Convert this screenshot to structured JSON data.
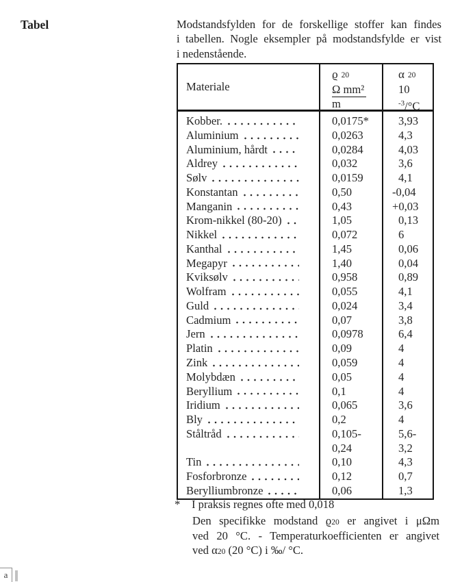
{
  "margin_label": "Tabel",
  "intro": {
    "lines": [
      "Modstandsfylden for de forskellige stoffer kan findes",
      "i tabellen. Nogle eksempler på modstandsfylde er vist",
      "i nedenstående."
    ]
  },
  "table": {
    "header": {
      "material": "Materiale",
      "rho_symbol": "ϱ",
      "rho_sub": "20",
      "rho_num": "Ω mm²",
      "rho_den": "m",
      "alpha_symbol": "α",
      "alpha_sub": "20",
      "alpha_base": "10",
      "alpha_exp": "-3",
      "alpha_unit": "/°C"
    },
    "rows": [
      {
        "name": "Kobber.",
        "rho": "0,0175*",
        "alpha": "3,93"
      },
      {
        "name": "Aluminium",
        "rho": "0,0263",
        "alpha": "4,3"
      },
      {
        "name": "Aluminium, hårdt",
        "rho": "0,0284",
        "alpha": "4,03"
      },
      {
        "name": "Aldrey",
        "rho": "0,032",
        "alpha": "3,6"
      },
      {
        "name": "Sølv",
        "rho": "0,0159",
        "alpha": "4,1"
      },
      {
        "name": "Konstantan",
        "rho": "0,50",
        "alpha": "-0,04"
      },
      {
        "name": "Manganin",
        "rho": "0,43",
        "alpha": "+0,03"
      },
      {
        "name": "Krom-nikkel (80-20)",
        "rho": "1,05",
        "alpha": "0,13"
      },
      {
        "name": "Nikkel",
        "rho": "0,072",
        "alpha": "6"
      },
      {
        "name": "Kanthal",
        "rho": "1,45",
        "alpha": "0,06"
      },
      {
        "name": "Megapyr",
        "rho": "1,40",
        "alpha": "0,04"
      },
      {
        "name": "Kviksølv",
        "rho": "0,958",
        "alpha": "0,89"
      },
      {
        "name": "Wolfram",
        "rho": "0,055",
        "alpha": "4,1"
      },
      {
        "name": "Guld",
        "rho": "0,024",
        "alpha": "3,4"
      },
      {
        "name": "Cadmium",
        "rho": "0,07",
        "alpha": "3,8"
      },
      {
        "name": "Jern",
        "rho": "0,0978",
        "alpha": "6,4"
      },
      {
        "name": "Platin",
        "rho": "0,09",
        "alpha": "4"
      },
      {
        "name": "Zink",
        "rho": "0,059",
        "alpha": "4"
      },
      {
        "name": "Molybdæn",
        "rho": "0,05",
        "alpha": "4"
      },
      {
        "name": "Beryllium",
        "rho": "0,1",
        "alpha": "4"
      },
      {
        "name": "Iridium",
        "rho": "0,065",
        "alpha": "3,6"
      },
      {
        "name": "Bly",
        "rho": "0,2",
        "alpha": "4"
      },
      {
        "name": "Ståltråd",
        "rho": [
          "0,105-",
          "0,24"
        ],
        "alpha": [
          "5,6-",
          "3,2"
        ]
      },
      {
        "name": "Tin",
        "rho": "0,10",
        "alpha": "4,3"
      },
      {
        "name": "Fosforbronze",
        "rho": "0,12",
        "alpha": "0,7"
      },
      {
        "name": "Berylliumbronze",
        "rho": "0,06",
        "alpha": "1,3"
      }
    ]
  },
  "footnote": {
    "marker": "*",
    "text": "I praksis regnes ofte med 0,018"
  },
  "note": {
    "line1_pre": "Den specifikke modstand ϱ",
    "line1_sub": "20",
    "line1_post": " er angivet i μΩm",
    "line2": "ved 20 °C. - Temperaturkoefficienten er angivet",
    "line3_pre": "ved α",
    "line3_sub": "20",
    "line3_post": " (20 °C) i ‰/ °C."
  },
  "corner": {
    "char": "a"
  }
}
